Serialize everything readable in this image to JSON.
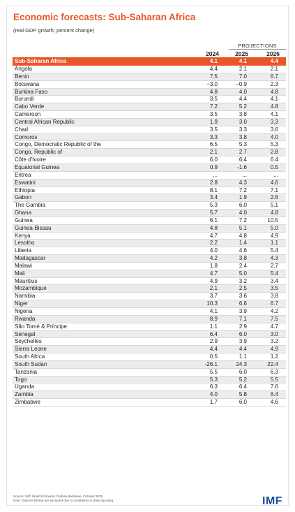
{
  "title": "Economic forecasts: Sub-Saharan Africa",
  "subtitle": "(real GDP growth; percent change)",
  "projections_label": "PROJECTIONS",
  "years": [
    "2024",
    "2025",
    "2026"
  ],
  "region": {
    "name": "Sub-Saharan Africa",
    "values": [
      "4.1",
      "4.1",
      "4.4"
    ]
  },
  "rows": [
    {
      "name": "Angola",
      "values": [
        "4.4",
        "2.1",
        "2.1"
      ]
    },
    {
      "name": "Benin",
      "values": [
        "7.5",
        "7.0",
        "6.7"
      ]
    },
    {
      "name": "Botswana",
      "values": [
        "−3.0",
        "−0.9",
        "2.3"
      ]
    },
    {
      "name": "Burkina Faso",
      "values": [
        "4.8",
        "4.0",
        "4.8"
      ]
    },
    {
      "name": "Burundi",
      "values": [
        "3.5",
        "4.4",
        "4.1"
      ]
    },
    {
      "name": "Cabo Verde",
      "values": [
        "7.2",
        "5.2",
        "4.8"
      ]
    },
    {
      "name": "Cameroon",
      "values": [
        "3.5",
        "3.8",
        "4.1"
      ]
    },
    {
      "name": "Central African Republic",
      "values": [
        "1.9",
        "3.0",
        "3.3"
      ]
    },
    {
      "name": "Chad",
      "values": [
        "3.5",
        "3.3",
        "3.6"
      ]
    },
    {
      "name": "Comoros",
      "values": [
        "3.3",
        "3.8",
        "4.0"
      ]
    },
    {
      "name": "Congo, Democratic Republic of the",
      "values": [
        "6.5",
        "5.3",
        "5.3"
      ]
    },
    {
      "name": "Congo, Republic of",
      "values": [
        "2.1",
        "2.7",
        "2.8"
      ]
    },
    {
      "name": "Côte d'Ivoire",
      "values": [
        "6.0",
        "6.4",
        "6.4"
      ]
    },
    {
      "name": "Equatorial Guinea",
      "values": [
        "0.9",
        "-1.6",
        "0.5"
      ]
    },
    {
      "name": "Eritrea",
      "values": [
        "...",
        "...",
        "..."
      ]
    },
    {
      "name": "Eswatini",
      "values": [
        "2.8",
        "4.3",
        "4.6"
      ]
    },
    {
      "name": "Ethiopia",
      "values": [
        "8.1",
        "7.2",
        "7.1"
      ]
    },
    {
      "name": "Gabon",
      "values": [
        "3.4",
        "1.9",
        "2.6"
      ]
    },
    {
      "name": "The Gambia",
      "values": [
        "5.3",
        "6.0",
        "5.1"
      ]
    },
    {
      "name": "Ghana",
      "values": [
        "5.7",
        "4.0",
        "4.8"
      ]
    },
    {
      "name": "Guinea",
      "values": [
        "6.1",
        "7.2",
        "10.5"
      ]
    },
    {
      "name": "Guinea-Bissau",
      "values": [
        "4.8",
        "5.1",
        "5.0"
      ]
    },
    {
      "name": "Kenya",
      "values": [
        "4.7",
        "4.8",
        "4.9"
      ]
    },
    {
      "name": "Lesotho",
      "values": [
        "2.2",
        "1.4",
        "1.1"
      ]
    },
    {
      "name": "Liberia",
      "values": [
        "4.0",
        "4.6",
        "5.4"
      ]
    },
    {
      "name": "Madagascar",
      "values": [
        "4.2",
        "3.8",
        "4.3"
      ]
    },
    {
      "name": "Malawi",
      "values": [
        "1.8",
        "2.4",
        "2.7"
      ]
    },
    {
      "name": "Mali",
      "values": [
        "4.7",
        "5.0",
        "5.4"
      ]
    },
    {
      "name": "Mauritius",
      "values": [
        "4.9",
        "3.2",
        "3.4"
      ]
    },
    {
      "name": "Mozambique",
      "values": [
        "2.1",
        "2.5",
        "3.5"
      ]
    },
    {
      "name": "Namibia",
      "values": [
        "3.7",
        "3.6",
        "3.8"
      ]
    },
    {
      "name": "Niger",
      "values": [
        "10.3",
        "6.6",
        "6.7"
      ]
    },
    {
      "name": "Nigeria",
      "values": [
        "4.1",
        "3.9",
        "4.2"
      ]
    },
    {
      "name": "Rwanda",
      "values": [
        "8.9",
        "7.1",
        "7.5"
      ]
    },
    {
      "name": "São Tomé & Príncipe",
      "values": [
        "1.1",
        "2.9",
        "4.7"
      ]
    },
    {
      "name": "Senegal",
      "values": [
        "6.4",
        "6.0",
        "3.0"
      ]
    },
    {
      "name": "Seychelles",
      "values": [
        "2.9",
        "3.9",
        "3.2"
      ]
    },
    {
      "name": "Sierra Leone",
      "values": [
        "4.4",
        "4.4",
        "4.9"
      ]
    },
    {
      "name": "South Africa",
      "values": [
        "0.5",
        "1.1",
        "1.2"
      ]
    },
    {
      "name": "South Sudan",
      "values": [
        "-26.1",
        "24.3",
        "22.4"
      ]
    },
    {
      "name": "Tanzania",
      "values": [
        "5.5",
        "6.0",
        "6.3"
      ]
    },
    {
      "name": "Togo",
      "values": [
        "5.3",
        "5.2",
        "5.5"
      ]
    },
    {
      "name": "Uganda",
      "values": [
        "6.3",
        "6.4",
        "7.6"
      ]
    },
    {
      "name": "Zambia",
      "values": [
        "4.0",
        "5.8",
        "6.4"
      ]
    },
    {
      "name": "Zimbabwe",
      "values": [
        "1.7",
        "6.0",
        "4.6"
      ]
    }
  ],
  "footer": {
    "source": "Source: IMF, World Economic Outlook database, October 2025.",
    "note": "Note: Data for Eritrea are excluded due to constraints in data reporting."
  },
  "logo_text": "IMF",
  "colors": {
    "accent": "#e8562a",
    "logo": "#1d4fa0",
    "stripe": "#ececec"
  }
}
